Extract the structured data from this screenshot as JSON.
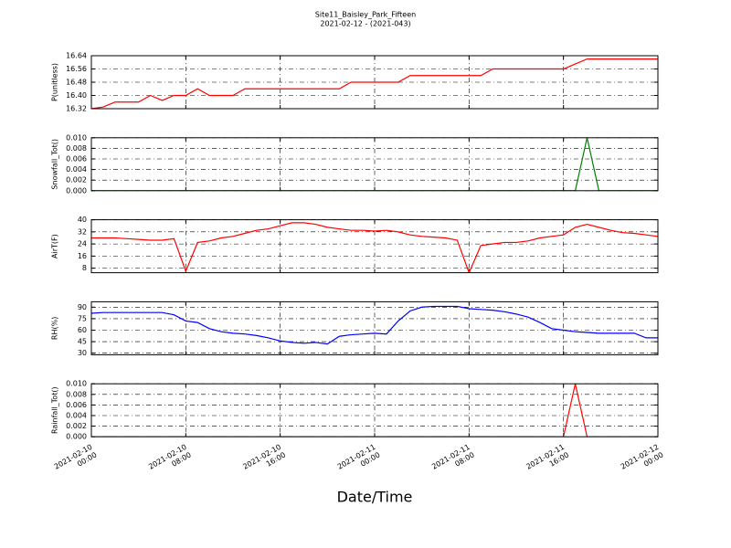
{
  "chart_data": [
    {
      "type": "line",
      "title": "Site11_Baisley_Park_Fifteen",
      "subtitle": "2021-02-12 - (2021-043)",
      "ylabel": "P(unitless)",
      "ylim": [
        16.32,
        16.64
      ],
      "yticks": [
        16.32,
        {
          "value": 16.4,
          "label": "16.40"
        },
        16.48,
        16.56,
        16.64
      ],
      "grid": true,
      "x": [
        "2021-02-10 00:00",
        "2021-02-10 01:00",
        "2021-02-10 02:00",
        "2021-02-10 03:00",
        "2021-02-10 04:00",
        "2021-02-10 05:00",
        "2021-02-10 06:00",
        "2021-02-10 07:00",
        "2021-02-10 08:00",
        "2021-02-10 09:00",
        "2021-02-10 10:00",
        "2021-02-10 11:00",
        "2021-02-10 12:00",
        "2021-02-10 13:00",
        "2021-02-10 14:00",
        "2021-02-10 15:00",
        "2021-02-10 16:00",
        "2021-02-10 17:00",
        "2021-02-10 18:00",
        "2021-02-10 19:00",
        "2021-02-10 20:00",
        "2021-02-10 21:00",
        "2021-02-10 22:00",
        "2021-02-10 23:00",
        "2021-02-11 00:00",
        "2021-02-11 01:00",
        "2021-02-11 02:00",
        "2021-02-11 03:00",
        "2021-02-11 04:00",
        "2021-02-11 05:00",
        "2021-02-11 06:00",
        "2021-02-11 07:00",
        "2021-02-11 08:00",
        "2021-02-11 09:00",
        "2021-02-11 10:00",
        "2021-02-11 11:00",
        "2021-02-11 12:00",
        "2021-02-11 13:00",
        "2021-02-11 14:00",
        "2021-02-11 15:00",
        "2021-02-11 16:00",
        "2021-02-11 17:00",
        "2021-02-11 18:00",
        "2021-02-11 19:00",
        "2021-02-11 20:00",
        "2021-02-11 21:00",
        "2021-02-11 22:00",
        "2021-02-11 23:00",
        "2021-02-12 00:00"
      ],
      "series": [
        {
          "color": "#ff0000",
          "values": [
            16.32,
            16.33,
            16.36,
            16.36,
            16.36,
            16.4,
            16.37,
            16.4,
            16.4,
            16.44,
            16.4,
            16.4,
            16.4,
            16.44,
            16.44,
            16.44,
            16.44,
            16.44,
            16.44,
            16.44,
            16.44,
            16.44,
            16.48,
            16.48,
            16.48,
            16.48,
            16.48,
            16.52,
            16.52,
            16.52,
            16.52,
            16.52,
            16.52,
            16.52,
            16.56,
            16.56,
            16.56,
            16.56,
            16.56,
            16.56,
            16.56,
            16.59,
            16.62,
            16.62,
            16.62,
            16.62,
            16.62,
            16.62,
            16.62
          ]
        }
      ]
    },
    {
      "type": "line",
      "ylabel": "Snowfall_Tot()",
      "ylim": [
        0,
        0.01
      ],
      "yticks": [
        {
          "value": 0,
          "label": "0.000"
        },
        {
          "value": 0.002,
          "label": "0.002"
        },
        {
          "value": 0.004,
          "label": "0.004"
        },
        {
          "value": 0.006,
          "label": "0.006"
        },
        {
          "value": 0.008,
          "label": "0.008"
        },
        {
          "value": 0.01,
          "label": "0.010"
        }
      ],
      "grid": true,
      "x": [
        "2021-02-10 00:00",
        "2021-02-10 01:00",
        "2021-02-10 02:00",
        "2021-02-10 03:00",
        "2021-02-10 04:00",
        "2021-02-10 05:00",
        "2021-02-10 06:00",
        "2021-02-10 07:00",
        "2021-02-10 08:00",
        "2021-02-10 09:00",
        "2021-02-10 10:00",
        "2021-02-10 11:00",
        "2021-02-10 12:00",
        "2021-02-10 13:00",
        "2021-02-10 14:00",
        "2021-02-10 15:00",
        "2021-02-10 16:00",
        "2021-02-10 17:00",
        "2021-02-10 18:00",
        "2021-02-10 19:00",
        "2021-02-10 20:00",
        "2021-02-10 21:00",
        "2021-02-10 22:00",
        "2021-02-10 23:00",
        "2021-02-11 00:00",
        "2021-02-11 01:00",
        "2021-02-11 02:00",
        "2021-02-11 03:00",
        "2021-02-11 04:00",
        "2021-02-11 05:00",
        "2021-02-11 06:00",
        "2021-02-11 07:00",
        "2021-02-11 08:00",
        "2021-02-11 09:00",
        "2021-02-11 10:00",
        "2021-02-11 11:00",
        "2021-02-11 12:00",
        "2021-02-11 13:00",
        "2021-02-11 14:00",
        "2021-02-11 15:00",
        "2021-02-11 16:00",
        "2021-02-11 17:00",
        "2021-02-11 18:00",
        "2021-02-11 19:00",
        "2021-02-11 20:00",
        "2021-02-11 21:00",
        "2021-02-11 22:00",
        "2021-02-11 23:00",
        "2021-02-12 00:00"
      ],
      "series": [
        {
          "color": "#008000",
          "values": [
            0,
            0,
            0,
            0,
            0,
            0,
            0,
            0,
            0,
            0,
            0,
            0,
            0,
            0,
            0,
            0,
            0,
            0,
            0,
            0,
            0,
            0,
            0,
            0,
            0,
            0,
            0,
            0,
            0,
            0,
            0,
            0,
            0,
            0,
            0,
            0,
            0,
            0,
            0,
            0,
            0,
            0,
            0.01,
            0,
            0,
            0,
            0,
            0,
            0
          ]
        }
      ]
    },
    {
      "type": "line",
      "ylabel": "AirT(F)",
      "ylim": [
        5,
        40
      ],
      "yticks": [
        8,
        16,
        24,
        32,
        40
      ],
      "grid": true,
      "x": [
        "2021-02-10 00:00",
        "2021-02-10 01:00",
        "2021-02-10 02:00",
        "2021-02-10 03:00",
        "2021-02-10 04:00",
        "2021-02-10 05:00",
        "2021-02-10 06:00",
        "2021-02-10 07:00",
        "2021-02-10 08:00",
        "2021-02-10 09:00",
        "2021-02-10 10:00",
        "2021-02-10 11:00",
        "2021-02-10 12:00",
        "2021-02-10 13:00",
        "2021-02-10 14:00",
        "2021-02-10 15:00",
        "2021-02-10 16:00",
        "2021-02-10 17:00",
        "2021-02-10 18:00",
        "2021-02-10 19:00",
        "2021-02-10 20:00",
        "2021-02-10 21:00",
        "2021-02-10 22:00",
        "2021-02-10 23:00",
        "2021-02-11 00:00",
        "2021-02-11 01:00",
        "2021-02-11 02:00",
        "2021-02-11 03:00",
        "2021-02-11 04:00",
        "2021-02-11 05:00",
        "2021-02-11 06:00",
        "2021-02-11 07:00",
        "2021-02-11 08:00",
        "2021-02-11 09:00",
        "2021-02-11 10:00",
        "2021-02-11 11:00",
        "2021-02-11 12:00",
        "2021-02-11 13:00",
        "2021-02-11 14:00",
        "2021-02-11 15:00",
        "2021-02-11 16:00",
        "2021-02-11 17:00",
        "2021-02-11 18:00",
        "2021-02-11 19:00",
        "2021-02-11 20:00",
        "2021-02-11 21:00",
        "2021-02-11 22:00",
        "2021-02-11 23:00",
        "2021-02-12 00:00"
      ],
      "series": [
        {
          "color": "#ff0000",
          "values": [
            28,
            28,
            28,
            27.5,
            27,
            26.5,
            26.5,
            27.5,
            6,
            25,
            26,
            28,
            29,
            31,
            33,
            34,
            36,
            38,
            38,
            37,
            35,
            34,
            33,
            33,
            32.5,
            33,
            32,
            30,
            29,
            28.5,
            28,
            26.5,
            5,
            23,
            24,
            25,
            25,
            26,
            28,
            29,
            30,
            35,
            37,
            35,
            33,
            31.5,
            31,
            30,
            29
          ]
        }
      ]
    },
    {
      "type": "line",
      "ylabel": "RH(%)",
      "ylim": [
        28,
        97
      ],
      "yticks": [
        30,
        45,
        60,
        75,
        90
      ],
      "grid": true,
      "x": [
        "2021-02-10 00:00",
        "2021-02-10 01:00",
        "2021-02-10 02:00",
        "2021-02-10 03:00",
        "2021-02-10 04:00",
        "2021-02-10 05:00",
        "2021-02-10 06:00",
        "2021-02-10 07:00",
        "2021-02-10 08:00",
        "2021-02-10 09:00",
        "2021-02-10 10:00",
        "2021-02-10 11:00",
        "2021-02-10 12:00",
        "2021-02-10 13:00",
        "2021-02-10 14:00",
        "2021-02-10 15:00",
        "2021-02-10 16:00",
        "2021-02-10 17:00",
        "2021-02-10 18:00",
        "2021-02-10 19:00",
        "2021-02-10 20:00",
        "2021-02-10 21:00",
        "2021-02-10 22:00",
        "2021-02-10 23:00",
        "2021-02-11 00:00",
        "2021-02-11 01:00",
        "2021-02-11 02:00",
        "2021-02-11 03:00",
        "2021-02-11 04:00",
        "2021-02-11 05:00",
        "2021-02-11 06:00",
        "2021-02-11 07:00",
        "2021-02-11 08:00",
        "2021-02-11 09:00",
        "2021-02-11 10:00",
        "2021-02-11 11:00",
        "2021-02-11 12:00",
        "2021-02-11 13:00",
        "2021-02-11 14:00",
        "2021-02-11 15:00",
        "2021-02-11 16:00",
        "2021-02-11 17:00",
        "2021-02-11 18:00",
        "2021-02-11 19:00",
        "2021-02-11 20:00",
        "2021-02-11 21:00",
        "2021-02-11 22:00",
        "2021-02-11 23:00",
        "2021-02-12 00:00"
      ],
      "series": [
        {
          "color": "#0000ff",
          "values": [
            82,
            83,
            83,
            83,
            83,
            83,
            83,
            80,
            72,
            70,
            62,
            58,
            56,
            55,
            53,
            50,
            46,
            44,
            43,
            44,
            42,
            52,
            54,
            55,
            56,
            55,
            72,
            85,
            90,
            91,
            91,
            91,
            88,
            87,
            86,
            84,
            81,
            77,
            70,
            62,
            60,
            58,
            57,
            56,
            56,
            56,
            56,
            50,
            50
          ]
        }
      ]
    },
    {
      "type": "line",
      "ylabel": "Rainfall_Tot()",
      "xlabel": "Date/Time",
      "ylim": [
        0,
        0.01
      ],
      "yticks": [
        {
          "value": 0,
          "label": "0.000"
        },
        {
          "value": 0.002,
          "label": "0.002"
        },
        {
          "value": 0.004,
          "label": "0.004"
        },
        {
          "value": 0.006,
          "label": "0.006"
        },
        {
          "value": 0.008,
          "label": "0.008"
        },
        {
          "value": 0.01,
          "label": "0.010"
        }
      ],
      "grid": true,
      "xlim": [
        "2021-02-10 00:00",
        "2021-02-12 00:00"
      ],
      "xticks": [
        "2021-02-10 00:00",
        "2021-02-10 08:00",
        "2021-02-10 16:00",
        "2021-02-11 00:00",
        "2021-02-11 08:00",
        "2021-02-11 16:00",
        "2021-02-12 00:00"
      ],
      "x": [
        "2021-02-10 00:00",
        "2021-02-10 01:00",
        "2021-02-10 02:00",
        "2021-02-10 03:00",
        "2021-02-10 04:00",
        "2021-02-10 05:00",
        "2021-02-10 06:00",
        "2021-02-10 07:00",
        "2021-02-10 08:00",
        "2021-02-10 09:00",
        "2021-02-10 10:00",
        "2021-02-10 11:00",
        "2021-02-10 12:00",
        "2021-02-10 13:00",
        "2021-02-10 14:00",
        "2021-02-10 15:00",
        "2021-02-10 16:00",
        "2021-02-10 17:00",
        "2021-02-10 18:00",
        "2021-02-10 19:00",
        "2021-02-10 20:00",
        "2021-02-10 21:00",
        "2021-02-10 22:00",
        "2021-02-10 23:00",
        "2021-02-11 00:00",
        "2021-02-11 01:00",
        "2021-02-11 02:00",
        "2021-02-11 03:00",
        "2021-02-11 04:00",
        "2021-02-11 05:00",
        "2021-02-11 06:00",
        "2021-02-11 07:00",
        "2021-02-11 08:00",
        "2021-02-11 09:00",
        "2021-02-11 10:00",
        "2021-02-11 11:00",
        "2021-02-11 12:00",
        "2021-02-11 13:00",
        "2021-02-11 14:00",
        "2021-02-11 15:00",
        "2021-02-11 16:00",
        "2021-02-11 17:00",
        "2021-02-11 18:00",
        "2021-02-11 19:00",
        "2021-02-11 20:00",
        "2021-02-11 21:00",
        "2021-02-11 22:00",
        "2021-02-11 23:00",
        "2021-02-12 00:00"
      ],
      "series": [
        {
          "color": "#ff0000",
          "values": [
            0,
            0,
            0,
            0,
            0,
            0,
            0,
            0,
            0,
            0,
            0,
            0,
            0,
            0,
            0,
            0,
            0,
            0,
            0,
            0,
            0,
            0,
            0,
            0,
            0,
            0,
            0,
            0,
            0,
            0,
            0,
            0,
            0,
            0,
            0,
            0,
            0,
            0,
            0,
            0,
            0,
            0.01,
            0,
            0,
            0,
            0,
            0,
            0,
            0
          ]
        }
      ]
    }
  ]
}
